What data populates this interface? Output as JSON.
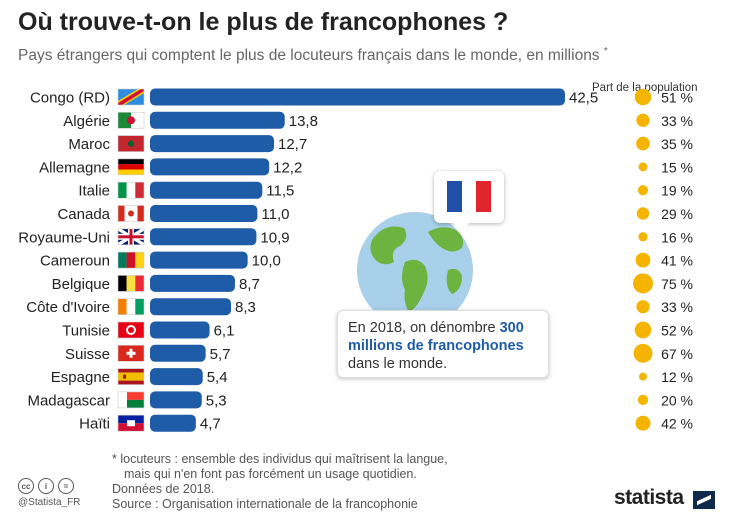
{
  "title": "Où trouve-t-on le plus de francophones ?",
  "subtitle": "Pays étrangers qui comptent le plus de locuteurs français dans le monde, en millions",
  "subtitle_mark": "*",
  "population_header": "Part de la population",
  "callout": {
    "text_before": "En 2018, on dénombre ",
    "highlight": "300 millions de francophones",
    "text_after": " dans le monde."
  },
  "footnote": {
    "line1": "* locuteurs : ensemble des individus qui maîtrisent la langue,",
    "line2": "mais qui n'en font pas forcément un usage quotidien.",
    "line3": "Données de 2018.",
    "line4": "Source : Organisation internationale de la francophonie"
  },
  "handle": "@Statista_FR",
  "logo": "statista",
  "colors": {
    "bar": "#1f5ca8",
    "dot": "#f5b400",
    "text": "#222222"
  },
  "chart_data": {
    "type": "bar",
    "orientation": "horizontal",
    "categories": [
      "Congo (RD)",
      "Algérie",
      "Maroc",
      "Allemagne",
      "Italie",
      "Canada",
      "Royaume-Uni",
      "Cameroun",
      "Belgique",
      "Côte d'Ivoire",
      "Tunisie",
      "Suisse",
      "Espagne",
      "Madagascar",
      "Haïti"
    ],
    "values": [
      42.5,
      13.8,
      12.7,
      12.2,
      11.5,
      11.0,
      10.9,
      10.0,
      8.7,
      8.3,
      6.1,
      5.7,
      5.4,
      5.3,
      4.7
    ],
    "value_labels": [
      "42,5",
      "13,8",
      "12,7",
      "12,2",
      "11,5",
      "11,0",
      "10,9",
      "10,0",
      "8,7",
      "8,3",
      "6,1",
      "5,7",
      "5,4",
      "5,3",
      "4,7"
    ],
    "population_share": [
      51,
      33,
      35,
      15,
      19,
      29,
      16,
      41,
      75,
      33,
      52,
      67,
      12,
      20,
      42
    ],
    "population_labels": [
      "51 %",
      "33 %",
      "35 %",
      "15 %",
      "19 %",
      "29 %",
      "16 %",
      "41 %",
      "75 %",
      "33 %",
      "52 %",
      "67 %",
      "12 %",
      "20 %",
      "42 %"
    ],
    "flags": [
      "congo-rd-flag",
      "algeria-flag",
      "morocco-flag",
      "germany-flag",
      "italy-flag",
      "canada-flag",
      "uk-flag",
      "cameroon-flag",
      "belgium-flag",
      "ivory-coast-flag",
      "tunisia-flag",
      "switzerland-flag",
      "spain-flag",
      "madagascar-flag",
      "haiti-flag"
    ],
    "xlim": [
      0,
      42.5
    ],
    "title": "Où trouve-t-on le plus de francophones ?",
    "xlabel": "",
    "ylabel": ""
  }
}
